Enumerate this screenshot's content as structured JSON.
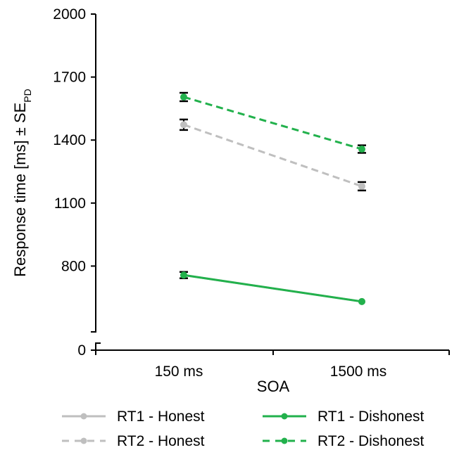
{
  "chart_data": {
    "type": "line",
    "categories": [
      "150 ms",
      "1500 ms"
    ],
    "xlabel": "SOA",
    "ylabel": "Response time [ms] ± SE",
    "ylabel_subscript": "PD",
    "y_ticks": [
      "0",
      "800",
      "1100",
      "1400",
      "1700",
      "2000"
    ],
    "axis_break": true,
    "ylim": [
      500,
      2000
    ],
    "grid": false,
    "legend_position": "bottom",
    "series": [
      {
        "name": "RT1 - Honest",
        "values": [
          757,
          631
        ],
        "errors": [
          0,
          0
        ],
        "color": "#BFBFBF",
        "dash": "solid"
      },
      {
        "name": "RT1 - Dishonest",
        "values": [
          757,
          631
        ],
        "errors": [
          15,
          0
        ],
        "color": "#22B14C",
        "dash": "solid"
      },
      {
        "name": "RT2 - Honest",
        "values": [
          1473,
          1180
        ],
        "errors": [
          25,
          20
        ],
        "color": "#BFBFBF",
        "dash": "dashed"
      },
      {
        "name": "RT2 - Dishonest",
        "values": [
          1605,
          1357
        ],
        "errors": [
          20,
          18
        ],
        "color": "#22B14C",
        "dash": "dashed"
      }
    ]
  }
}
